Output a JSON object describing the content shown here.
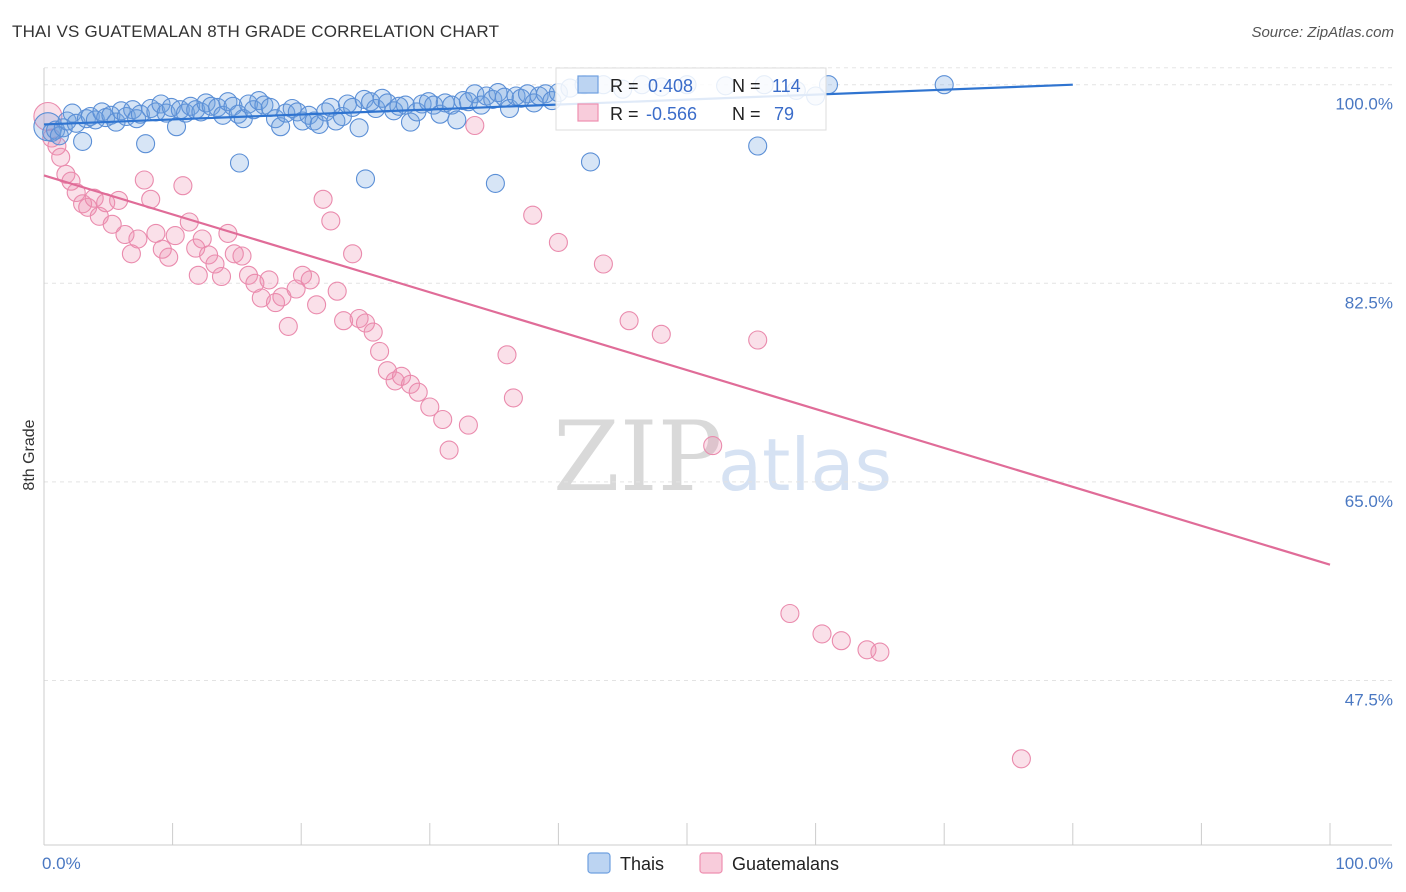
{
  "title": "THAI VS GUATEMALAN 8TH GRADE CORRELATION CHART",
  "source": "Source: ZipAtlas.com",
  "watermark": {
    "zip": "ZIP",
    "atlas": "atlas"
  },
  "legend": {
    "rows": [
      {
        "r_label": "R =",
        "r_value": "0.408",
        "n_label": "N =",
        "n_value": "114",
        "color": "#6fa0e0"
      },
      {
        "r_label": "R =",
        "r_value": "-0.566",
        "n_label": "N =",
        "n_value": "79",
        "color": "#ee8fb0"
      }
    ]
  },
  "chart_data": {
    "type": "scatter",
    "title": "THAI VS GUATEMALAN 8TH GRADE CORRELATION CHART",
    "xlabel": "",
    "ylabel": "8th Grade",
    "xlim": [
      0,
      100
    ],
    "ylim": [
      33,
      102
    ],
    "x_tick_labels": [
      "0.0%",
      "100.0%"
    ],
    "y_ticks": [
      100,
      82.5,
      65,
      47.5
    ],
    "y_tick_labels": [
      "100.0%",
      "82.5%",
      "65.0%",
      "47.5%"
    ],
    "grid": "horizontal dashed",
    "legend_position": "top-center",
    "series": [
      {
        "name": "Thais",
        "color": "#6fa0e0",
        "trend": {
          "x": [
            0,
            80
          ],
          "y": [
            96.5,
            100.0
          ]
        },
        "points": [
          [
            0.3,
            96.3
          ],
          [
            0.6,
            95.8
          ],
          [
            0.9,
            96.0
          ],
          [
            1.2,
            95.5
          ],
          [
            1.5,
            96.2
          ],
          [
            1.8,
            96.8
          ],
          [
            2.2,
            97.5
          ],
          [
            2.5,
            96.6
          ],
          [
            3.0,
            95.0
          ],
          [
            3.3,
            97.0
          ],
          [
            3.6,
            97.2
          ],
          [
            4.0,
            96.9
          ],
          [
            4.5,
            97.6
          ],
          [
            4.8,
            97.1
          ],
          [
            5.2,
            97.3
          ],
          [
            5.6,
            96.7
          ],
          [
            6.0,
            97.7
          ],
          [
            6.4,
            97.2
          ],
          [
            6.9,
            97.8
          ],
          [
            7.2,
            97.0
          ],
          [
            7.5,
            97.4
          ],
          [
            7.9,
            94.8
          ],
          [
            8.3,
            97.9
          ],
          [
            8.7,
            97.6
          ],
          [
            9.1,
            98.3
          ],
          [
            9.5,
            97.5
          ],
          [
            9.9,
            98.0
          ],
          [
            10.3,
            96.3
          ],
          [
            10.6,
            97.8
          ],
          [
            11.0,
            97.5
          ],
          [
            11.4,
            98.1
          ],
          [
            11.8,
            97.8
          ],
          [
            12.2,
            97.6
          ],
          [
            12.6,
            98.4
          ],
          [
            13.0,
            98.1
          ],
          [
            13.5,
            98.0
          ],
          [
            13.9,
            97.3
          ],
          [
            14.3,
            98.5
          ],
          [
            14.7,
            98.1
          ],
          [
            15.1,
            97.4
          ],
          [
            15.5,
            97.0
          ],
          [
            15.9,
            98.3
          ],
          [
            16.3,
            97.8
          ],
          [
            16.7,
            98.6
          ],
          [
            17.1,
            98.2
          ],
          [
            17.6,
            98.0
          ],
          [
            18.0,
            97.0
          ],
          [
            18.4,
            96.3
          ],
          [
            18.8,
            97.5
          ],
          [
            19.3,
            97.9
          ],
          [
            19.7,
            97.6
          ],
          [
            20.1,
            96.8
          ],
          [
            20.6,
            97.3
          ],
          [
            21.0,
            96.8
          ],
          [
            21.4,
            96.5
          ],
          [
            21.9,
            97.6
          ],
          [
            22.3,
            98.0
          ],
          [
            22.7,
            96.8
          ],
          [
            23.2,
            97.2
          ],
          [
            23.6,
            98.3
          ],
          [
            24.0,
            98.0
          ],
          [
            24.5,
            96.2
          ],
          [
            24.9,
            98.7
          ],
          [
            25.4,
            98.5
          ],
          [
            25.8,
            97.9
          ],
          [
            26.3,
            98.8
          ],
          [
            26.7,
            98.4
          ],
          [
            27.2,
            97.7
          ],
          [
            27.6,
            98.1
          ],
          [
            28.1,
            98.2
          ],
          [
            28.5,
            96.7
          ],
          [
            29.0,
            97.6
          ],
          [
            29.4,
            98.3
          ],
          [
            29.9,
            98.5
          ],
          [
            30.3,
            98.2
          ],
          [
            30.8,
            97.4
          ],
          [
            31.2,
            98.4
          ],
          [
            31.7,
            98.2
          ],
          [
            32.1,
            96.9
          ],
          [
            32.6,
            98.6
          ],
          [
            33.0,
            98.5
          ],
          [
            33.5,
            99.2
          ],
          [
            34.0,
            98.2
          ],
          [
            34.4,
            99.0
          ],
          [
            34.9,
            98.7
          ],
          [
            35.3,
            99.3
          ],
          [
            35.8,
            98.9
          ],
          [
            36.2,
            97.9
          ],
          [
            36.7,
            99.0
          ],
          [
            37.1,
            98.8
          ],
          [
            37.6,
            99.2
          ],
          [
            38.1,
            98.4
          ],
          [
            38.5,
            99.0
          ],
          [
            39.0,
            99.2
          ],
          [
            39.5,
            98.6
          ],
          [
            40.0,
            99.3
          ],
          [
            40.9,
            99.7
          ],
          [
            42.0,
            100.0
          ],
          [
            43.5,
            100.0
          ],
          [
            45.0,
            99.6
          ],
          [
            46.5,
            100.0
          ],
          [
            48.0,
            99.8
          ],
          [
            50.0,
            100.0
          ],
          [
            53.0,
            99.9
          ],
          [
            56.0,
            100.0
          ],
          [
            61.0,
            100.0
          ],
          [
            70.0,
            100.0
          ],
          [
            15.2,
            93.1
          ],
          [
            25.0,
            91.7
          ],
          [
            35.1,
            91.3
          ],
          [
            42.5,
            93.2
          ],
          [
            55.5,
            94.6
          ],
          [
            58.5,
            99.5
          ],
          [
            60.0,
            99.0
          ]
        ]
      },
      {
        "name": "Guatemalans",
        "color": "#ee8fb0",
        "trend": {
          "x": [
            0,
            100
          ],
          "y": [
            92.0,
            57.7
          ]
        },
        "points": [
          [
            0.3,
            97.2
          ],
          [
            0.6,
            95.3
          ],
          [
            1.0,
            94.6
          ],
          [
            1.3,
            93.6
          ],
          [
            1.7,
            92.1
          ],
          [
            2.1,
            91.5
          ],
          [
            2.5,
            90.5
          ],
          [
            3.0,
            89.5
          ],
          [
            3.4,
            89.2
          ],
          [
            3.9,
            90.0
          ],
          [
            4.3,
            88.4
          ],
          [
            4.8,
            89.6
          ],
          [
            5.3,
            87.7
          ],
          [
            5.8,
            89.8
          ],
          [
            6.3,
            86.8
          ],
          [
            6.8,
            85.1
          ],
          [
            7.3,
            86.4
          ],
          [
            7.8,
            91.6
          ],
          [
            8.3,
            89.9
          ],
          [
            8.7,
            86.9
          ],
          [
            9.2,
            85.5
          ],
          [
            9.7,
            84.8
          ],
          [
            10.2,
            86.7
          ],
          [
            10.8,
            91.1
          ],
          [
            11.3,
            87.9
          ],
          [
            11.8,
            85.6
          ],
          [
            12.3,
            86.4
          ],
          [
            12.8,
            85.0
          ],
          [
            13.3,
            84.2
          ],
          [
            13.8,
            83.1
          ],
          [
            14.3,
            86.9
          ],
          [
            14.8,
            85.1
          ],
          [
            15.4,
            84.9
          ],
          [
            15.9,
            83.2
          ],
          [
            16.4,
            82.5
          ],
          [
            16.9,
            81.2
          ],
          [
            17.5,
            82.8
          ],
          [
            18.0,
            80.8
          ],
          [
            18.5,
            81.3
          ],
          [
            19.0,
            78.7
          ],
          [
            19.6,
            82.0
          ],
          [
            20.1,
            83.2
          ],
          [
            20.7,
            82.8
          ],
          [
            21.2,
            80.6
          ],
          [
            21.7,
            89.9
          ],
          [
            22.3,
            88.0
          ],
          [
            22.8,
            81.8
          ],
          [
            23.3,
            79.2
          ],
          [
            24.0,
            85.1
          ],
          [
            24.5,
            79.4
          ],
          [
            25.0,
            79.0
          ],
          [
            25.6,
            78.2
          ],
          [
            26.1,
            76.5
          ],
          [
            26.7,
            74.8
          ],
          [
            27.3,
            73.9
          ],
          [
            27.8,
            74.3
          ],
          [
            28.5,
            73.6
          ],
          [
            29.1,
            72.9
          ],
          [
            30.0,
            71.6
          ],
          [
            31.0,
            70.5
          ],
          [
            31.5,
            67.8
          ],
          [
            33.0,
            70.0
          ],
          [
            36.0,
            76.2
          ],
          [
            36.5,
            72.4
          ],
          [
            38.0,
            88.5
          ],
          [
            40.0,
            86.1
          ],
          [
            43.5,
            84.2
          ],
          [
            45.5,
            79.2
          ],
          [
            48.0,
            78.0
          ],
          [
            52.0,
            68.2
          ],
          [
            55.5,
            77.5
          ],
          [
            58.0,
            53.4
          ],
          [
            60.5,
            51.6
          ],
          [
            62.0,
            51.0
          ],
          [
            64.0,
            50.2
          ],
          [
            65.0,
            50.0
          ],
          [
            76.0,
            40.6
          ],
          [
            12.0,
            83.2
          ],
          [
            33.5,
            96.4
          ]
        ]
      }
    ]
  },
  "bottom_legend": [
    {
      "label": "Thais",
      "color": "#6fa0e0"
    },
    {
      "label": "Guatemalans",
      "color": "#ee8fb0"
    }
  ]
}
